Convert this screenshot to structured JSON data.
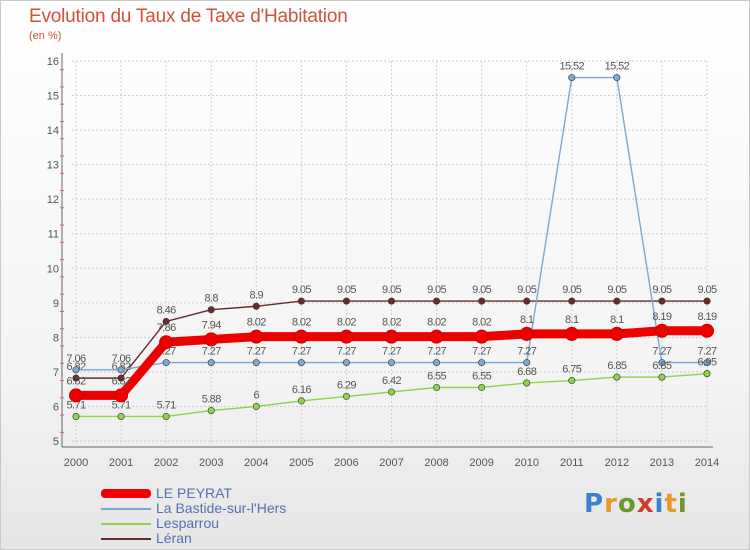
{
  "page": {
    "title": "Evolution du Taux de Taxe d'Habitation",
    "subtitle": "(en %)"
  },
  "logo": {
    "text": "Proxiti",
    "letter_colors": [
      "#3a7fd0",
      "#e8992a",
      "#6a9a2a",
      "#d03a2a",
      "#3a7fd0",
      "#e8992a",
      "#6a9a2a"
    ]
  },
  "chart_data": {
    "type": "line",
    "title": "Evolution du Taux de Taxe d'Habitation",
    "ylabel": "(en %)",
    "xlabel": "",
    "x": [
      "2000",
      "2001",
      "2002",
      "2003",
      "2004",
      "2005",
      "2006",
      "2007",
      "2008",
      "2009",
      "2010",
      "2011",
      "2012",
      "2013",
      "2014"
    ],
    "ylim": [
      5,
      16
    ],
    "yticks": [
      "5",
      "6",
      "7",
      "8",
      "9",
      "10",
      "11",
      "12",
      "13",
      "14",
      "15",
      "16"
    ],
    "grid": true,
    "legend_position": "bottom-left",
    "series": [
      {
        "name": "Léran",
        "color": "#6b2a2a",
        "values": [
          6.82,
          6.82,
          8.46,
          8.8,
          8.9,
          9.05,
          9.05,
          9.05,
          9.05,
          9.05,
          9.05,
          9.05,
          9.05,
          9.05,
          9.05
        ],
        "labels": [
          "6.82",
          "6.82",
          "8.46",
          "8.8",
          "8.9",
          "9.05",
          "9.05",
          "9.05",
          "9.05",
          "9.05",
          "9.05",
          "9.05",
          "9.05",
          "9.05",
          "9.05"
        ]
      },
      {
        "name": "La Bastide-sur-l'Hers",
        "color": "#7ea8cf",
        "values": [
          7.06,
          7.06,
          7.27,
          7.27,
          7.27,
          7.27,
          7.27,
          7.27,
          7.27,
          7.27,
          7.27,
          15.52,
          15.52,
          7.27,
          7.27
        ],
        "labels": [
          "7.06",
          "7.06",
          "7.27",
          "7.27",
          "7.27",
          "7.27",
          "7.27",
          "7.27",
          "7.27",
          "7.27",
          "7.27",
          "15.52",
          "15.52",
          "7.27",
          "7.27"
        ]
      },
      {
        "name": "Lesparrou",
        "color": "#8ed448",
        "values": [
          5.71,
          5.71,
          5.71,
          5.88,
          6.0,
          6.16,
          6.29,
          6.42,
          6.55,
          6.55,
          6.68,
          6.75,
          6.85,
          6.85,
          6.95
        ],
        "labels": [
          "5.71",
          "5.71",
          "5.71",
          "5.88",
          "6",
          "6.16",
          "6.29",
          "6.42",
          "6.55",
          "6.55",
          "6.68",
          "6.75",
          "6.85",
          "6.85",
          "6.95"
        ]
      },
      {
        "name": "LE PEYRAT",
        "color": "#ee0000",
        "values": [
          6.32,
          6.32,
          7.86,
          7.94,
          8.02,
          8.02,
          8.02,
          8.02,
          8.02,
          8.02,
          8.1,
          8.1,
          8.1,
          8.19,
          8.19
        ],
        "labels": [
          "6.32",
          "6.32",
          "7.86",
          "7.94",
          "8.02",
          "8.02",
          "8.02",
          "8.02",
          "8.02",
          "8.02",
          "8.1",
          "8.1",
          "8.1",
          "8.19",
          "8.19"
        ]
      }
    ],
    "legend": [
      "LE PEYRAT",
      "La Bastide-sur-l'Hers",
      "Lesparrou",
      "Léran"
    ]
  }
}
